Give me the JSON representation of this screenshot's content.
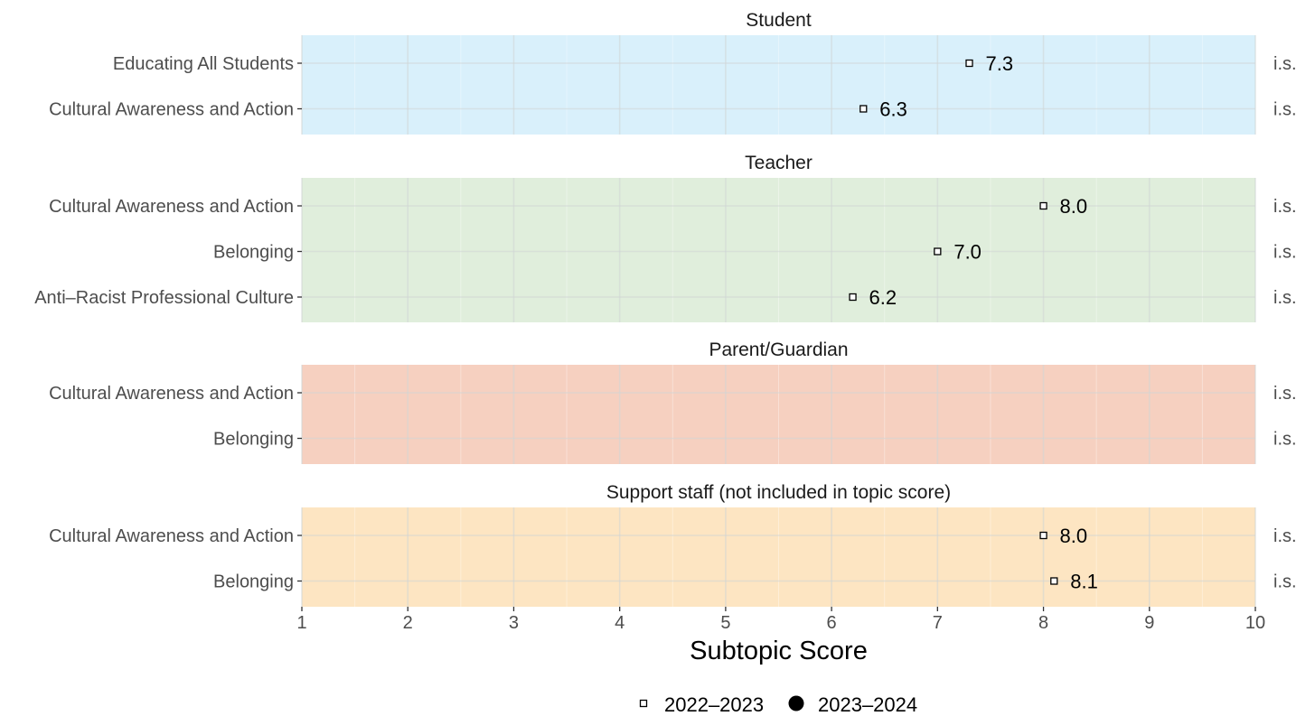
{
  "chart_data": {
    "type": "scatter",
    "xlabel": "Subtopic Score",
    "xlim": [
      1,
      10
    ],
    "x_ticks": [
      1,
      2,
      3,
      4,
      5,
      6,
      7,
      8,
      9,
      10
    ],
    "legend": {
      "placement": "bottom",
      "entries": [
        {
          "label": "2022–2023",
          "marker": "open-square"
        },
        {
          "label": "2023–2024",
          "marker": "filled-circle"
        }
      ]
    },
    "panels": [
      {
        "title": "Student",
        "fill": "#d9f0fb",
        "rows": [
          {
            "label": "Educating All Students",
            "value_2022_2023": 7.3,
            "value_label": "7.3",
            "status": "i.s."
          },
          {
            "label": "Cultural Awareness and Action",
            "value_2022_2023": 6.3,
            "value_label": "6.3",
            "status": "i.s."
          }
        ]
      },
      {
        "title": "Teacher",
        "fill": "#e0eedc",
        "rows": [
          {
            "label": "Cultural Awareness and Action",
            "value_2022_2023": 8.0,
            "value_label": "8.0",
            "status": "i.s."
          },
          {
            "label": "Belonging",
            "value_2022_2023": 7.0,
            "value_label": "7.0",
            "status": "i.s."
          },
          {
            "label": "Anti–Racist Professional Culture",
            "value_2022_2023": 6.2,
            "value_label": "6.2",
            "status": "i.s."
          }
        ]
      },
      {
        "title": "Parent/Guardian",
        "fill": "#f6d0c0",
        "rows": [
          {
            "label": "Cultural Awareness and Action",
            "value_2022_2023": null,
            "value_label": "",
            "status": "i.s."
          },
          {
            "label": "Belonging",
            "value_2022_2023": null,
            "value_label": "",
            "status": "i.s."
          }
        ]
      },
      {
        "title": "Support staff (not included in topic score)",
        "fill": "#fde5c2",
        "rows": [
          {
            "label": "Cultural Awareness and Action",
            "value_2022_2023": 8.0,
            "value_label": "8.0",
            "status": "i.s."
          },
          {
            "label": "Belonging",
            "value_2022_2023": 8.1,
            "value_label": "8.1",
            "status": "i.s."
          }
        ]
      }
    ]
  }
}
